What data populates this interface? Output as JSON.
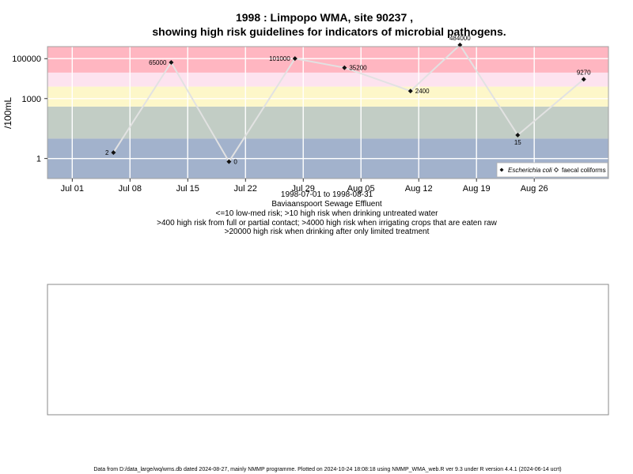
{
  "chart_data": {
    "type": "scatter",
    "title_line1": "1998 : Limpopo WMA, site 90237 ,",
    "title_line2": "showing high risk guidelines for indicators of microbial pathogens.",
    "ylabel": "/100mL",
    "y_scale": "log10",
    "ylim": [
      0.1,
      400000
    ],
    "xlim": [
      "1998-06-28",
      "1998-09-04"
    ],
    "x_ticks": [
      {
        "date": "1998-07-01",
        "label": "Jul 01"
      },
      {
        "date": "1998-07-08",
        "label": "Jul 08"
      },
      {
        "date": "1998-07-15",
        "label": "Jul 15"
      },
      {
        "date": "1998-07-22",
        "label": "Jul 22"
      },
      {
        "date": "1998-07-29",
        "label": "Jul 29"
      },
      {
        "date": "1998-08-05",
        "label": "Aug 05"
      },
      {
        "date": "1998-08-12",
        "label": "Aug 12"
      },
      {
        "date": "1998-08-19",
        "label": "Aug 19"
      },
      {
        "date": "1998-08-26",
        "label": "Aug 26"
      }
    ],
    "y_ticks": [
      {
        "value": 1,
        "label": "1"
      },
      {
        "value": 1000,
        "label": "1000"
      },
      {
        "value": 100000,
        "label": "100000"
      }
    ],
    "risk_bands": [
      {
        "from": 0.1,
        "to": 10,
        "color": "#a2b2cc"
      },
      {
        "from": 10,
        "to": 400,
        "color": "#c2cdc5"
      },
      {
        "from": 400,
        "to": 4000,
        "color": "#fdf7c9"
      },
      {
        "from": 4000,
        "to": 20000,
        "color": "#fde3ef"
      },
      {
        "from": 20000,
        "to": 400000,
        "color": "#ffb6c1"
      }
    ],
    "series": [
      {
        "name": "Escherichia coli",
        "marker": "filled-diamond",
        "points": [
          {
            "date": "1998-07-06",
            "value": 2,
            "label": "2",
            "label_pos": "left"
          },
          {
            "date": "1998-07-13",
            "value": 65000,
            "label": "65000",
            "label_pos": "left"
          },
          {
            "date": "1998-07-20",
            "value": 0.7,
            "label": "0",
            "label_pos": "right"
          },
          {
            "date": "1998-07-28",
            "value": 101000,
            "label": "101000",
            "label_pos": "left"
          },
          {
            "date": "1998-08-03",
            "value": 35200,
            "label": "35200",
            "label_pos": "right"
          },
          {
            "date": "1998-08-11",
            "value": 2400,
            "label": "2400",
            "label_pos": "right"
          },
          {
            "date": "1998-08-17",
            "value": 484000,
            "label": "484000",
            "label_pos": "above"
          },
          {
            "date": "1998-08-24",
            "value": 15,
            "label": "15",
            "label_pos": "below"
          },
          {
            "date": "1998-09-01",
            "value": 9270,
            "label": "9270",
            "label_pos": "above"
          }
        ]
      },
      {
        "name": "faecal coliforms",
        "marker": "open-diamond",
        "points": []
      }
    ],
    "line_color": "#e2e2e2",
    "legend_position": "bottom-right",
    "grid": true,
    "subtitle_lines": [
      "1998-07-01 to 1998-08-31",
      "Baviaanspoort Sewage Effluent",
      "<=10 low-med risk; >10 high risk when drinking untreated water",
      ">400 high risk from full or partial contact; >4000 high risk when irrigating crops that are eaten raw",
      ">20000 high risk when drinking after only limited treatment"
    ]
  },
  "footer": "Data from D:/data_large/wq/wms.db dated 2024-08-27, mainly NMMP programme. Plotted on 2024-10-24 18:08:18 using NMMP_WMA_web.R ver 9.3 under R version 4.4.1 (2024-06-14 ucrt)"
}
